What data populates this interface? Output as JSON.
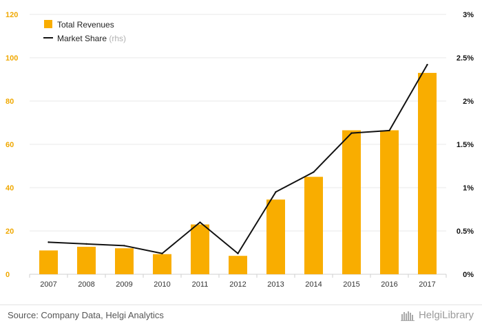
{
  "chart_data": {
    "type": "bar",
    "categories": [
      "2007",
      "2008",
      "2009",
      "2010",
      "2011",
      "2012",
      "2013",
      "2014",
      "2015",
      "2016",
      "2017"
    ],
    "series": [
      {
        "name": "Total Revenues",
        "kind": "bar",
        "axis": "left",
        "color": "#f9ad00",
        "values": [
          11,
          12.7,
          12,
          9.3,
          23,
          8.5,
          34.5,
          45,
          66.5,
          66.5,
          93
        ]
      },
      {
        "name": "Market Share",
        "suffix": "(rhs)",
        "kind": "line",
        "axis": "right",
        "color": "#111111",
        "values": [
          0.37,
          0.35,
          0.33,
          0.24,
          0.6,
          0.24,
          0.95,
          1.18,
          1.63,
          1.66,
          2.42
        ]
      }
    ],
    "ylim_left": [
      0,
      120
    ],
    "yticks_left": [
      0,
      20,
      40,
      60,
      80,
      100,
      120
    ],
    "ylim_right": [
      0,
      3
    ],
    "yticks_right_labels": [
      "0%",
      "0.5%",
      "1%",
      "1.5%",
      "2%",
      "2.5%",
      "3%"
    ],
    "grid": true,
    "legend_position": "top-left"
  },
  "footer": {
    "source": "Source: Company Data, Helgi Analytics",
    "logo_text": "HelgiLibrary"
  }
}
